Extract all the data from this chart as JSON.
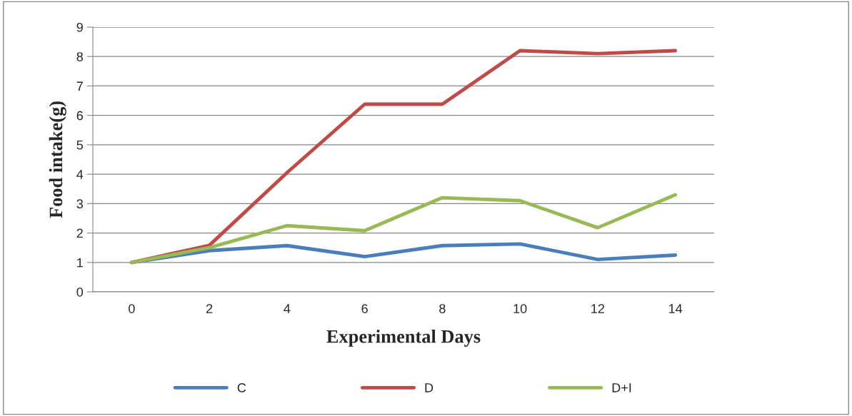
{
  "chart_data": {
    "type": "line",
    "xlabel": "Experimental Days",
    "ylabel": "Food intake(g)",
    "categories": [
      "0",
      "2",
      "4",
      "6",
      "8",
      "10",
      "12",
      "14"
    ],
    "series": [
      {
        "name": "C",
        "color": "#4a7ebb",
        "values": [
          1.0,
          1.4,
          1.57,
          1.2,
          1.57,
          1.63,
          1.1,
          1.25
        ]
      },
      {
        "name": "D",
        "color": "#be4b48",
        "values": [
          1.0,
          1.58,
          4.05,
          6.38,
          6.38,
          8.2,
          8.1,
          8.2
        ]
      },
      {
        "name": "D+I",
        "color": "#98b954",
        "values": [
          1.0,
          1.5,
          2.25,
          2.08,
          3.2,
          3.1,
          2.18,
          3.3
        ]
      }
    ],
    "ylim": [
      0,
      9
    ],
    "yticks": [
      0,
      1,
      2,
      3,
      4,
      5,
      6,
      7,
      8,
      9
    ],
    "grid": "y",
    "legend": "bottom",
    "marker": "none",
    "line_style": "solid"
  }
}
